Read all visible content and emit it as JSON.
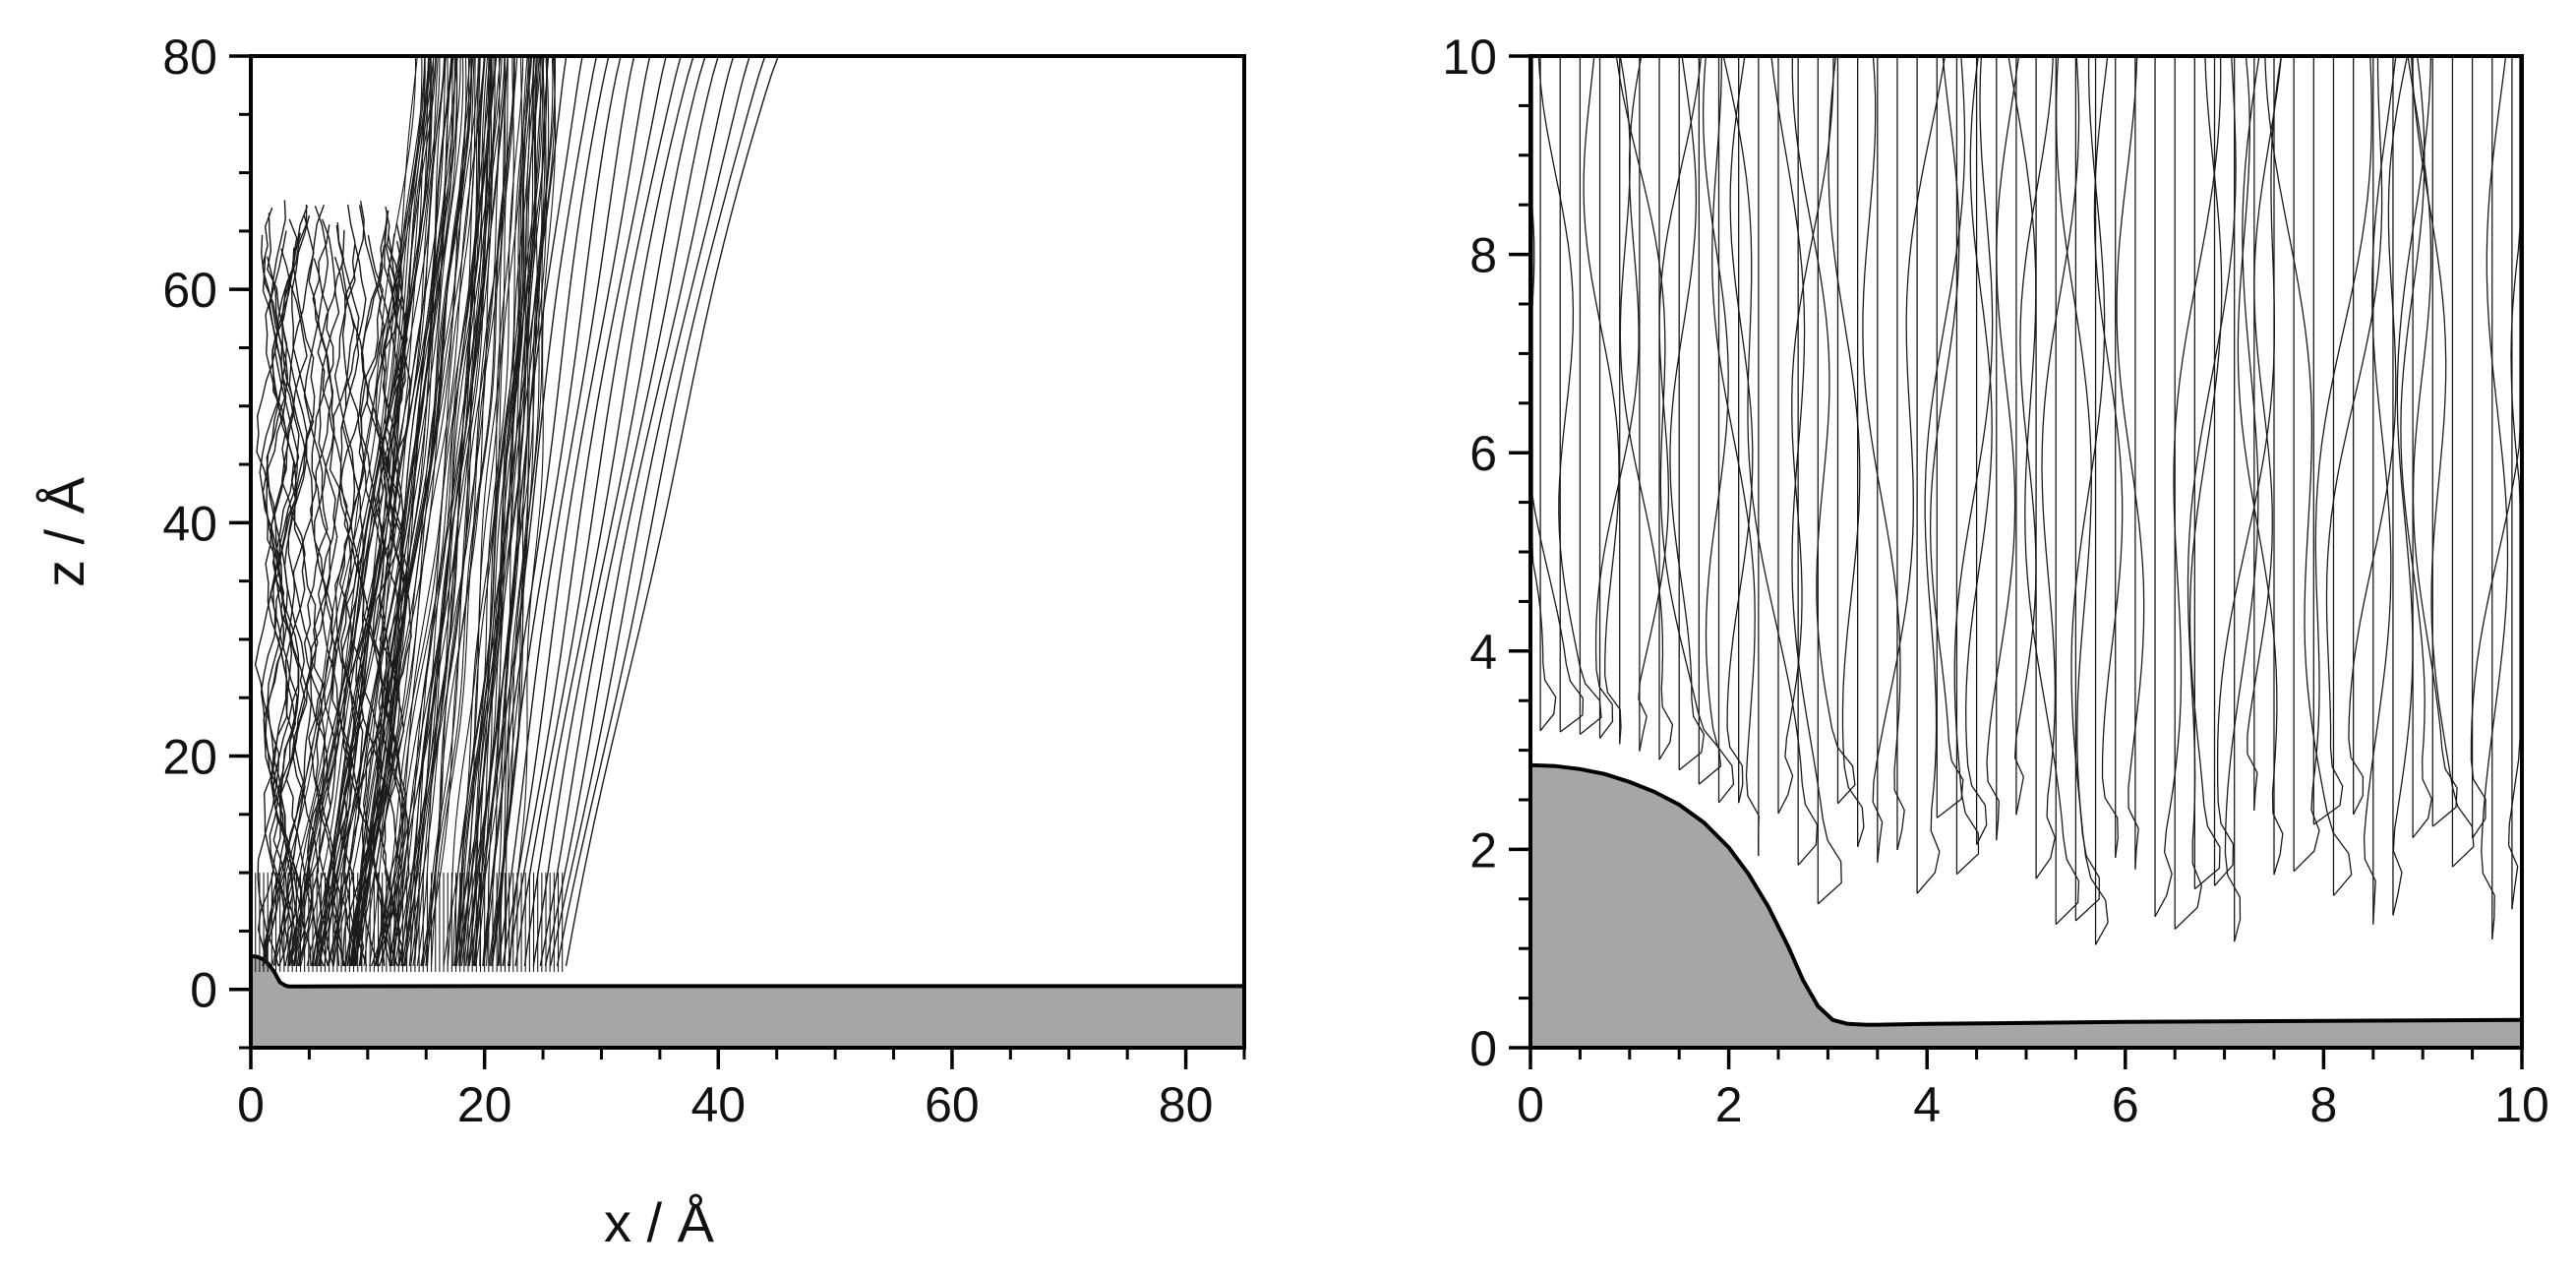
{
  "chart_data": [
    {
      "type": "line",
      "title": "",
      "xlabel": "x / Å",
      "ylabel": "z / Å",
      "xlim": [
        0,
        85
      ],
      "ylim": [
        -5,
        80
      ],
      "x_ticks": [
        0,
        20,
        40,
        60,
        80
      ],
      "y_ticks": [
        0,
        20,
        40,
        60,
        80
      ],
      "grid": false,
      "legend": "none",
      "surface_fill_color": "#a6a6a6",
      "trajectory_color": "#1a1a1a",
      "surface_profile": {
        "x": [
          0,
          0.5,
          1,
          1.5,
          2,
          2.5,
          3,
          3.3,
          4,
          6,
          10,
          20,
          40,
          60,
          85
        ],
        "z": [
          2.85,
          2.8,
          2.6,
          2.2,
          1.5,
          0.6,
          0.3,
          0.25,
          0.25,
          0.26,
          0.27,
          0.28,
          0.28,
          0.28,
          0.28
        ]
      },
      "trajectory_groups": [
        {
          "label_shown": "",
          "description_values": {
            "start_z": 65,
            "x_range": [
              0.5,
              13
            ],
            "end_z": 1.5
          }
        },
        {
          "label_shown": "",
          "description_values": {
            "start_z": 80,
            "x_range": [
              14,
              26
            ],
            "end_z": 1.5
          }
        },
        {
          "label_shown": "",
          "description_values": {
            "start_z": 80,
            "x_range": [
              26,
              45
            ],
            "end_z": 1.5
          }
        }
      ]
    },
    {
      "type": "line",
      "title": "",
      "xlabel": "",
      "ylabel": "",
      "xlim": [
        0,
        10
      ],
      "ylim": [
        0,
        10
      ],
      "x_ticks": [
        0,
        2,
        4,
        6,
        8,
        10
      ],
      "y_ticks": [
        0,
        2,
        4,
        6,
        8,
        10
      ],
      "grid": false,
      "legend": "none",
      "surface_fill_color": "#a6a6a6",
      "trajectory_color": "#1a1a1a",
      "surface_profile": {
        "x": [
          0,
          0.25,
          0.5,
          0.75,
          1,
          1.25,
          1.5,
          1.75,
          2,
          2.2,
          2.4,
          2.6,
          2.75,
          2.9,
          3.05,
          3.2,
          3.4,
          4,
          6,
          8,
          10
        ],
        "z": [
          2.85,
          2.84,
          2.81,
          2.76,
          2.68,
          2.58,
          2.45,
          2.27,
          2.02,
          1.75,
          1.42,
          1.02,
          0.68,
          0.42,
          0.28,
          0.24,
          0.23,
          0.24,
          0.26,
          0.27,
          0.28
        ]
      },
      "vertical_trajectories_x": [
        0.1,
        0.3,
        0.5,
        0.7,
        0.9,
        1.1,
        1.3,
        1.5,
        1.7,
        1.9,
        2.1,
        2.3,
        2.5,
        2.7,
        2.9,
        3.1,
        3.3,
        3.5,
        3.7,
        3.9,
        4.1,
        4.3,
        4.5,
        4.7,
        4.9,
        5.1,
        5.3,
        5.5,
        5.7,
        5.9,
        6.1,
        6.3,
        6.5,
        6.7,
        6.9,
        7.1,
        7.3,
        7.5,
        7.7,
        7.9,
        8.1,
        8.3,
        8.5,
        8.7,
        8.9,
        9.1,
        9.3,
        9.5,
        9.7,
        9.9
      ],
      "turning_points_z_range": [
        1.0,
        3.5
      ]
    }
  ]
}
